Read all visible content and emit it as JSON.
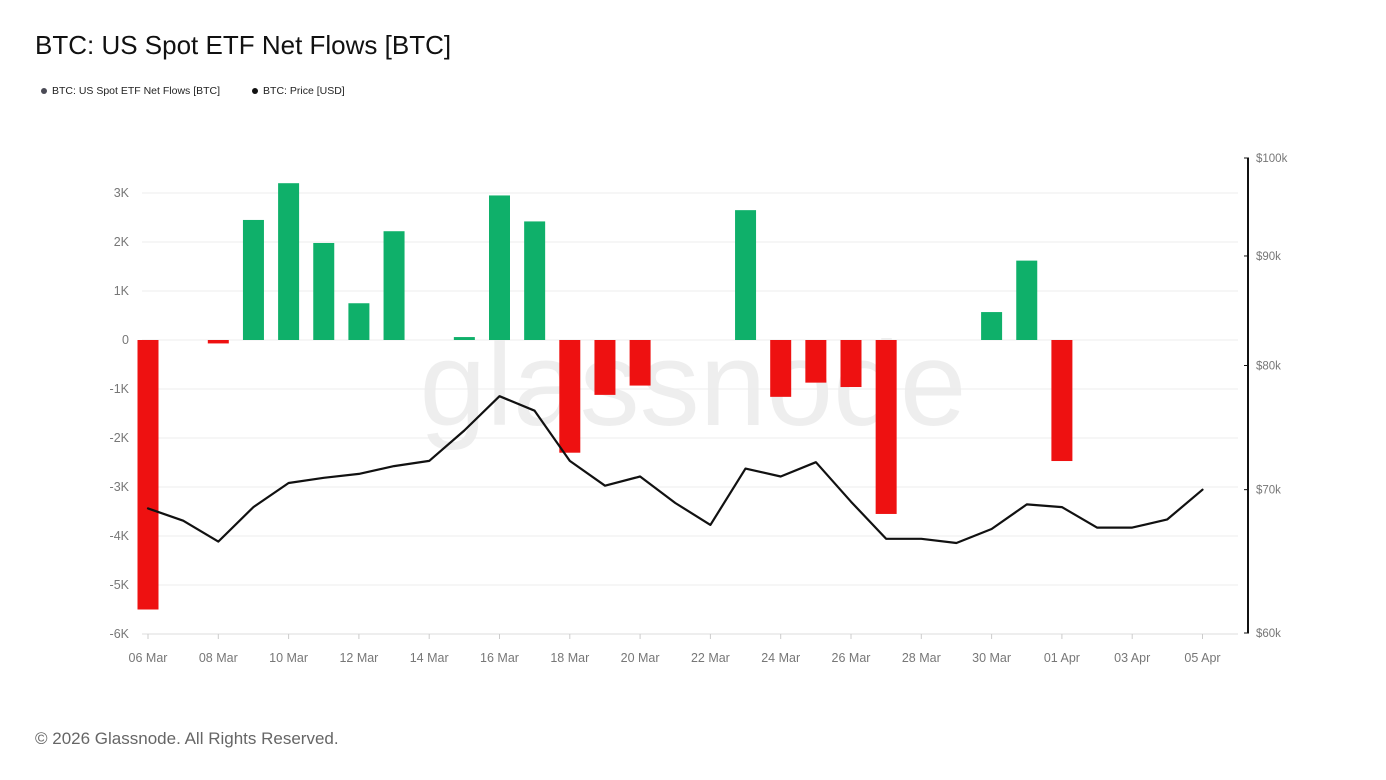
{
  "title": "BTC: US Spot ETF Net Flows [BTC]",
  "legend": [
    {
      "label": "BTC: US Spot ETF Net Flows [BTC]",
      "color": "#4a4a55"
    },
    {
      "label": "BTC: Price [USD]",
      "color": "#111111"
    }
  ],
  "watermark": "glassnode",
  "footer": "© 2026 Glassnode. All Rights Reserved.",
  "colors": {
    "positive": "#0fb06a",
    "negative": "#ee1111",
    "price_line": "#111111",
    "grid": "#ececec"
  },
  "chart_data": {
    "type": "bar",
    "x_labels": [
      "06 Mar",
      "08 Mar",
      "10 Mar",
      "12 Mar",
      "14 Mar",
      "16 Mar",
      "18 Mar",
      "20 Mar",
      "22 Mar",
      "24 Mar",
      "26 Mar",
      "28 Mar",
      "30 Mar",
      "01 Apr",
      "03 Apr",
      "05 Apr"
    ],
    "dates": [
      "06 Mar",
      "07 Mar",
      "08 Mar",
      "09 Mar",
      "10 Mar",
      "11 Mar",
      "12 Mar",
      "13 Mar",
      "14 Mar",
      "15 Mar",
      "16 Mar",
      "17 Mar",
      "18 Mar",
      "19 Mar",
      "20 Mar",
      "21 Mar",
      "22 Mar",
      "23 Mar",
      "24 Mar",
      "25 Mar",
      "26 Mar",
      "27 Mar",
      "28 Mar",
      "29 Mar",
      "30 Mar",
      "31 Mar",
      "01 Apr",
      "02 Apr",
      "03 Apr",
      "04 Apr",
      "05 Apr"
    ],
    "y_left": {
      "ticks": [
        3000,
        2000,
        1000,
        0,
        -1000,
        -2000,
        -3000,
        -4000,
        -5000,
        -6000
      ],
      "tick_labels": [
        "3K",
        "2K",
        "1K",
        "0",
        "-1K",
        "-2K",
        "-3K",
        "-4K",
        "-5K",
        "-6K"
      ],
      "range": [
        -6000,
        4000
      ]
    },
    "y_right": {
      "scale": "log",
      "ticks": [
        100000,
        90000,
        80000,
        70000,
        60000
      ],
      "tick_labels": [
        "$100k",
        "$90k",
        "$80k",
        "$70k",
        "$60k"
      ],
      "range": [
        60000,
        100000
      ]
    },
    "grid": true,
    "series": [
      {
        "name": "BTC: US Spot ETF Net Flows [BTC]",
        "type": "bar",
        "axis": "left",
        "values": [
          -5500,
          0,
          -70,
          2450,
          3200,
          1980,
          750,
          2220,
          0,
          60,
          2950,
          2420,
          -2300,
          -1120,
          -930,
          0,
          0,
          2650,
          -1160,
          -870,
          -960,
          -3550,
          0,
          0,
          570,
          1620,
          -2470,
          0,
          0,
          0,
          0
        ]
      },
      {
        "name": "BTC: Price [USD]",
        "type": "line",
        "axis": "right",
        "values": [
          68600,
          67700,
          66200,
          68700,
          70500,
          70900,
          71200,
          71800,
          72200,
          74600,
          77400,
          76200,
          72200,
          70300,
          71000,
          69000,
          67400,
          71600,
          71000,
          72100,
          69100,
          66400,
          66400,
          66100,
          67100,
          68900,
          68700,
          67200,
          67200,
          67800,
          70000
        ]
      }
    ]
  }
}
